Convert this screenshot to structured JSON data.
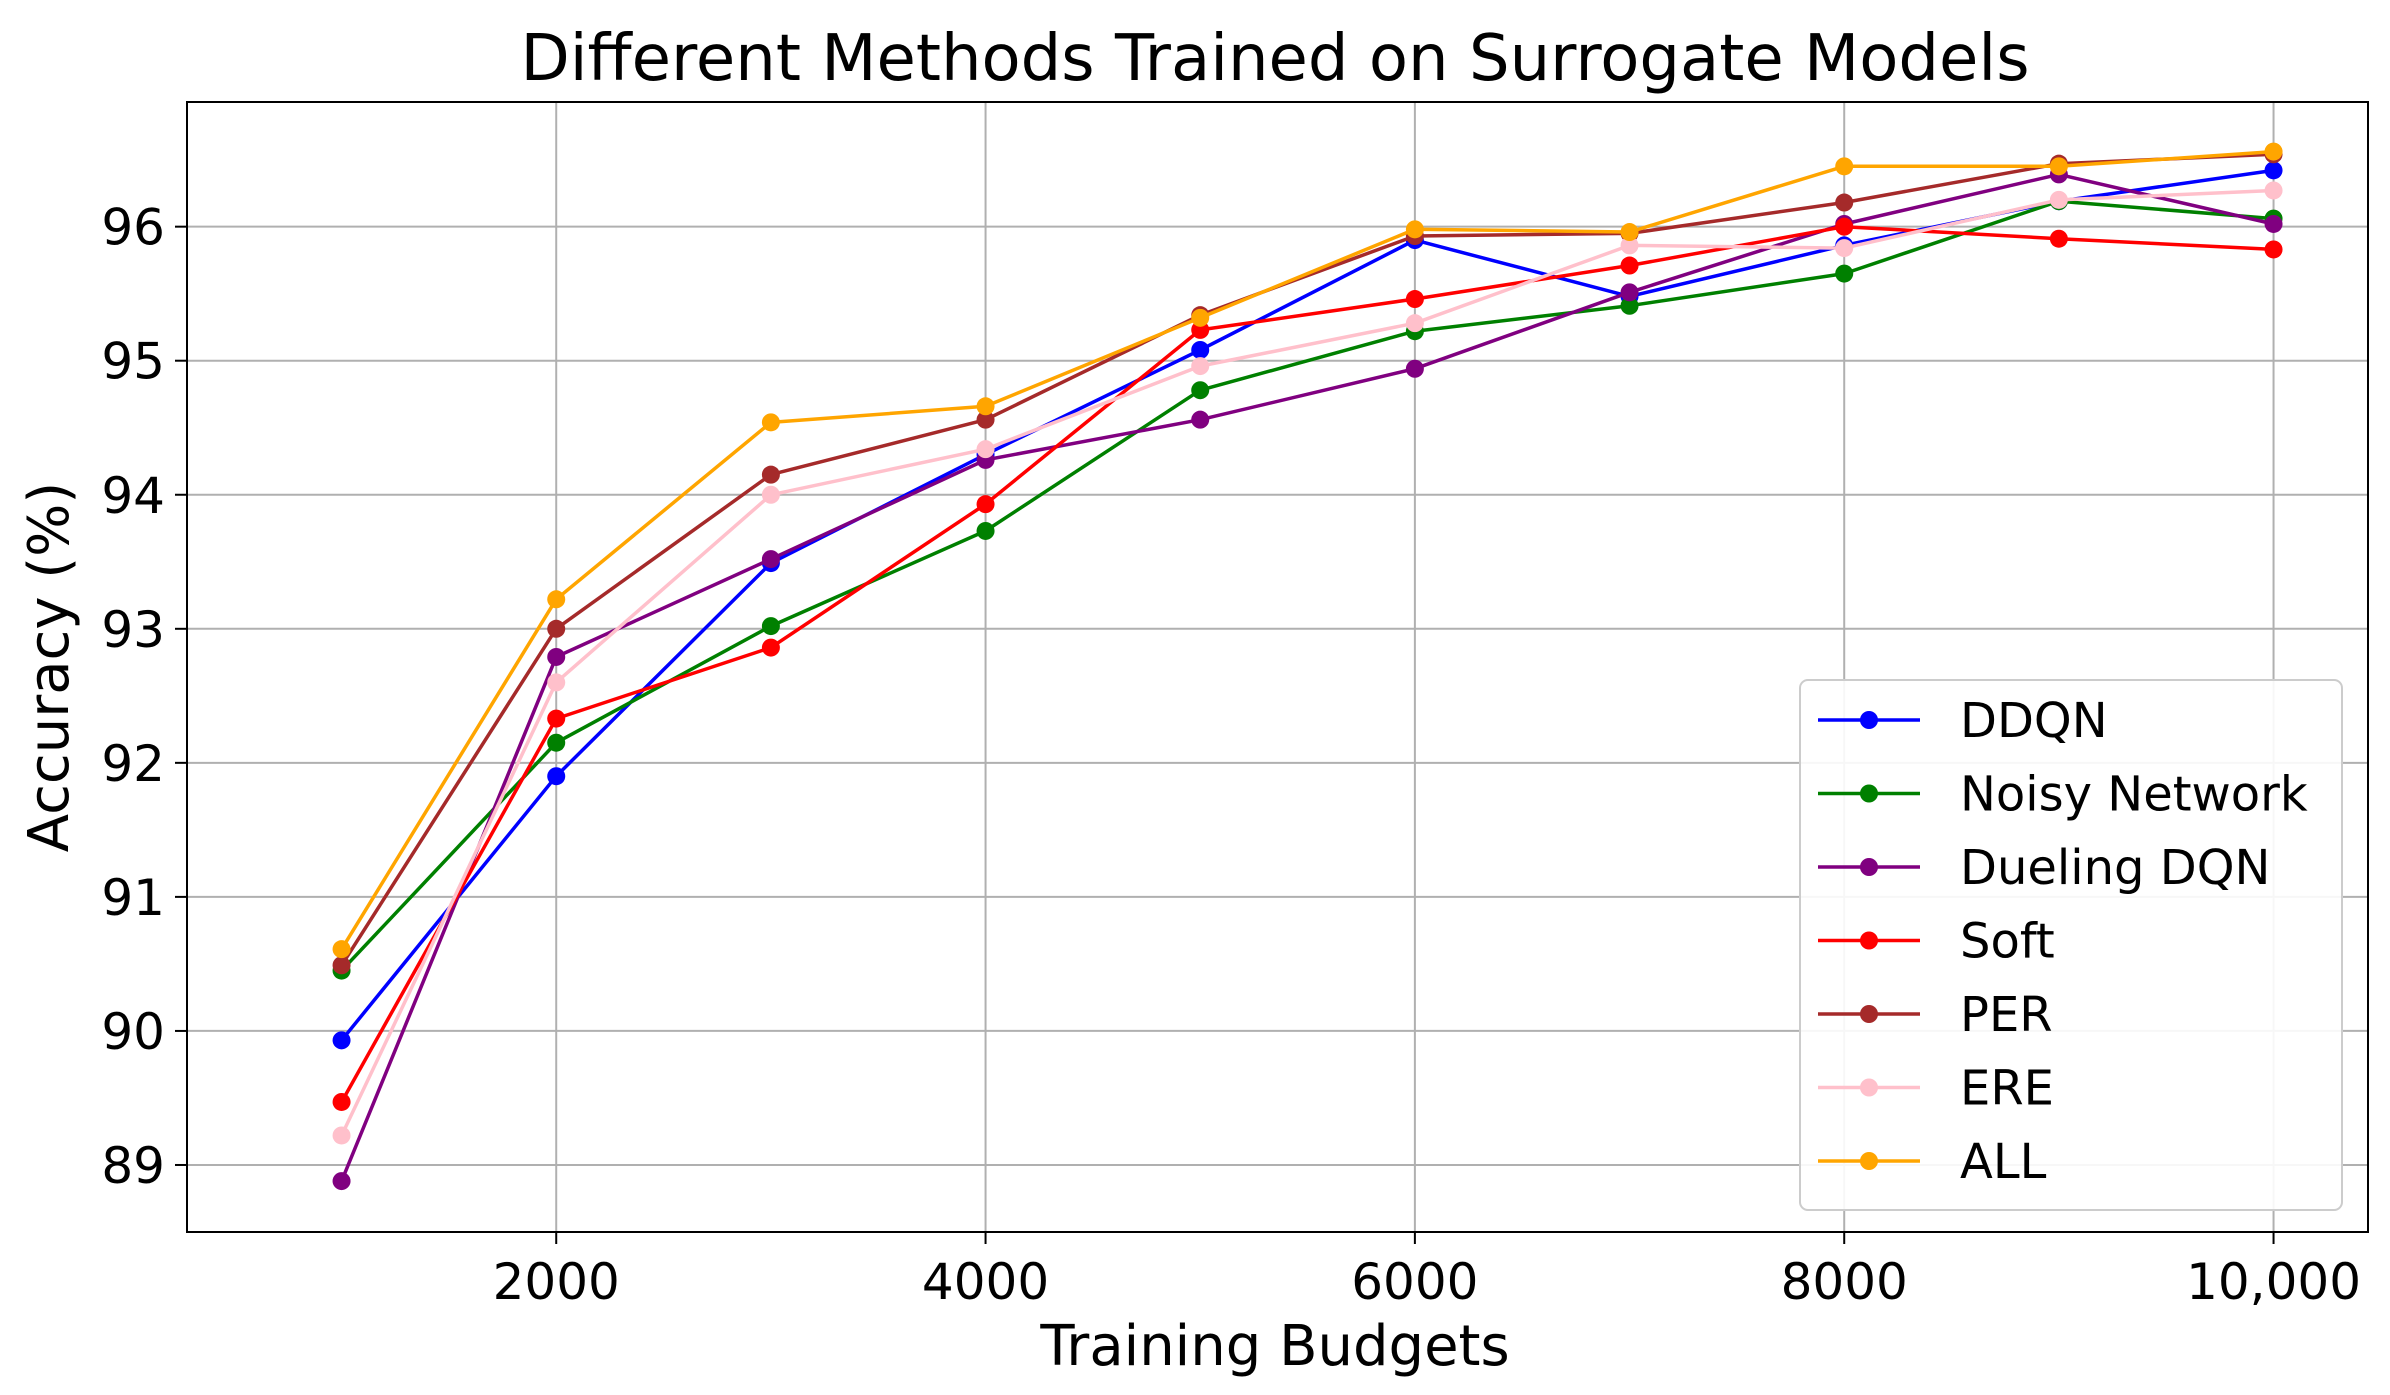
{
  "chart_data": {
    "type": "line",
    "title": "Different Methods Trained on Surrogate Models",
    "xlabel": "Training Budgets",
    "ylabel": "Accuracy (%)",
    "xlim": [
      280,
      10440
    ],
    "ylim": [
      88.5,
      96.93
    ],
    "grid": true,
    "legend_position": "lower-right",
    "x_ticks": [
      2000,
      4000,
      6000,
      8000,
      10000
    ],
    "x_tick_labels": [
      "2000",
      "4000",
      "6000",
      "8000",
      "10,000"
    ],
    "y_ticks": [
      89,
      90,
      91,
      92,
      93,
      94,
      95,
      96
    ],
    "y_tick_labels": [
      "89",
      "90",
      "91",
      "92",
      "93",
      "94",
      "95",
      "96"
    ],
    "x": [
      1000,
      2000,
      3000,
      4000,
      5000,
      6000,
      7000,
      8000,
      9000,
      10000
    ],
    "series": [
      {
        "name": "DDQN",
        "color": "#0000ff",
        "values": [
          89.93,
          91.9,
          93.49,
          94.3,
          95.08,
          95.9,
          95.48,
          95.86,
          96.19,
          96.42
        ]
      },
      {
        "name": "Noisy Network",
        "color": "#008000",
        "values": [
          90.45,
          92.15,
          93.02,
          93.73,
          94.78,
          95.22,
          95.41,
          95.65,
          96.19,
          96.06
        ]
      },
      {
        "name": "Dueling DQN",
        "color": "#800080",
        "values": [
          88.88,
          92.79,
          93.52,
          94.26,
          94.56,
          94.94,
          95.51,
          96.02,
          96.39,
          96.02
        ]
      },
      {
        "name": "Soft",
        "color": "#ff0000",
        "values": [
          89.47,
          92.33,
          92.86,
          93.93,
          95.23,
          95.46,
          95.71,
          96.0,
          95.91,
          95.83
        ]
      },
      {
        "name": "PER",
        "color": "#a52a2a",
        "values": [
          90.49,
          93.0,
          94.15,
          94.56,
          95.34,
          95.93,
          95.95,
          96.18,
          96.47,
          96.54
        ]
      },
      {
        "name": "ERE",
        "color": "#ffc0cb",
        "values": [
          89.22,
          92.6,
          94.0,
          94.34,
          94.96,
          95.28,
          95.86,
          95.84,
          96.2,
          96.27
        ]
      },
      {
        "name": "ALL",
        "color": "#ffa500",
        "values": [
          90.61,
          93.22,
          94.54,
          94.66,
          95.32,
          95.98,
          95.96,
          96.45,
          96.45,
          96.56
        ]
      }
    ]
  }
}
